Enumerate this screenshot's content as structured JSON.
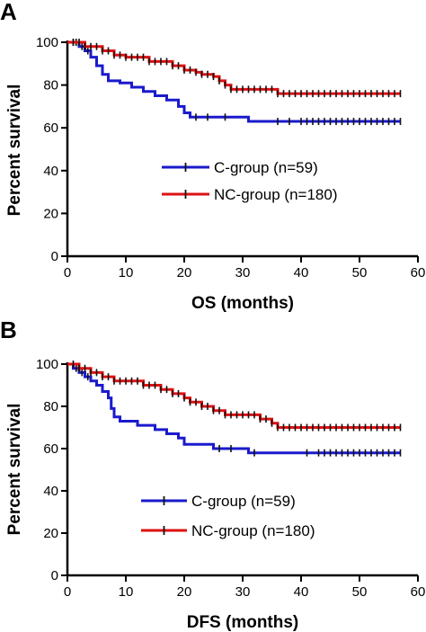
{
  "chart_data": [
    {
      "type": "line",
      "step": true,
      "panel_label": "A",
      "xlabel": "OS (months)",
      "ylabel": "Percent survival",
      "xlim": [
        0,
        60
      ],
      "ylim": [
        0,
        100
      ],
      "xticks": [
        "0",
        "10",
        "20",
        "30",
        "40",
        "50",
        "60"
      ],
      "yticks": [
        "0",
        "20",
        "40",
        "60",
        "80",
        "100"
      ],
      "legend_position": "center-right",
      "series": [
        {
          "name": "C-group (n=59)",
          "color": "#1a1acc",
          "points": [
            [
              0,
              100
            ],
            [
              2,
              98
            ],
            [
              3,
              96
            ],
            [
              4,
              93
            ],
            [
              5,
              89
            ],
            [
              6,
              85
            ],
            [
              7,
              82
            ],
            [
              9,
              81
            ],
            [
              11,
              79
            ],
            [
              13,
              77
            ],
            [
              15,
              75
            ],
            [
              17,
              73
            ],
            [
              19,
              70
            ],
            [
              20,
              67
            ],
            [
              21,
              65
            ],
            [
              30,
              65
            ],
            [
              31,
              63
            ],
            [
              57,
              63
            ]
          ],
          "censor_x": [
            1,
            1.5,
            2.5,
            3.5,
            22,
            24,
            27,
            36,
            38,
            40,
            41,
            42,
            43,
            44,
            45,
            46,
            47,
            48,
            49,
            50,
            51,
            52,
            53,
            54,
            55,
            56,
            57
          ]
        },
        {
          "name": "NC-group (n=180)",
          "color": "#dd1111",
          "points": [
            [
              0,
              100
            ],
            [
              3,
              98
            ],
            [
              6,
              96
            ],
            [
              8,
              94
            ],
            [
              10,
              93
            ],
            [
              14,
              91
            ],
            [
              18,
              89
            ],
            [
              20,
              87
            ],
            [
              22,
              86
            ],
            [
              23,
              85
            ],
            [
              25,
              84
            ],
            [
              26,
              82
            ],
            [
              27,
              80
            ],
            [
              28,
              78
            ],
            [
              35,
              78
            ],
            [
              36,
              76
            ],
            [
              57,
              76
            ]
          ],
          "censor_x": [
            1,
            2,
            3,
            4,
            5,
            6,
            7,
            8,
            9,
            10,
            11,
            12,
            13,
            14,
            15,
            16,
            17,
            18,
            19,
            20,
            21,
            22,
            23,
            24,
            25,
            26,
            27,
            28,
            29,
            30,
            31,
            32,
            33,
            34,
            35,
            36,
            37,
            38,
            39,
            40,
            41,
            42,
            43,
            44,
            45,
            46,
            47,
            48,
            49,
            50,
            51,
            52,
            53,
            54,
            55,
            56,
            57
          ]
        }
      ]
    },
    {
      "type": "line",
      "step": true,
      "panel_label": "B",
      "xlabel": "DFS (months)",
      "ylabel": "Percent survival",
      "xlim": [
        0,
        60
      ],
      "ylim": [
        0,
        100
      ],
      "xticks": [
        "0",
        "10",
        "20",
        "30",
        "40",
        "50",
        "60"
      ],
      "yticks": [
        "0",
        "20",
        "40",
        "60",
        "80",
        "100"
      ],
      "legend_position": "center-right",
      "series": [
        {
          "name": "C-group (n=59)",
          "color": "#1a1acc",
          "points": [
            [
              0,
              100
            ],
            [
              1,
              98
            ],
            [
              2,
              96
            ],
            [
              3,
              94
            ],
            [
              4,
              92
            ],
            [
              5,
              90
            ],
            [
              6,
              87
            ],
            [
              7,
              84
            ],
            [
              7.5,
              79
            ],
            [
              8,
              75
            ],
            [
              9,
              73
            ],
            [
              12,
              71
            ],
            [
              15,
              69
            ],
            [
              17,
              67
            ],
            [
              19,
              65
            ],
            [
              20,
              62
            ],
            [
              25,
              60
            ],
            [
              31,
              58
            ],
            [
              57,
              58
            ]
          ],
          "censor_x": [
            1.5,
            2.5,
            3.5,
            26,
            28,
            32,
            41,
            43,
            44,
            45,
            46,
            47,
            48,
            49,
            50,
            51,
            52,
            53,
            54,
            55,
            56,
            57
          ]
        },
        {
          "name": "NC-group (n=180)",
          "color": "#dd1111",
          "points": [
            [
              0,
              100
            ],
            [
              2,
              98
            ],
            [
              4,
              96
            ],
            [
              6,
              94
            ],
            [
              8,
              92
            ],
            [
              13,
              90
            ],
            [
              16,
              88
            ],
            [
              18,
              86
            ],
            [
              20,
              84
            ],
            [
              21,
              82
            ],
            [
              23,
              80
            ],
            [
              25,
              78
            ],
            [
              27,
              76
            ],
            [
              32,
              76
            ],
            [
              33,
              74
            ],
            [
              35,
              72
            ],
            [
              36,
              70
            ],
            [
              57,
              70
            ]
          ],
          "censor_x": [
            1,
            2,
            3,
            4,
            5,
            6,
            7,
            8,
            9,
            10,
            11,
            12,
            13,
            14,
            15,
            16,
            17,
            18,
            19,
            20,
            21,
            22,
            23,
            24,
            25,
            26,
            27,
            28,
            29,
            30,
            31,
            32,
            33,
            34,
            35,
            36,
            37,
            38,
            39,
            40,
            41,
            42,
            43,
            44,
            45,
            46,
            47,
            48,
            49,
            50,
            51,
            52,
            53,
            54,
            55,
            56,
            57
          ]
        }
      ]
    }
  ]
}
